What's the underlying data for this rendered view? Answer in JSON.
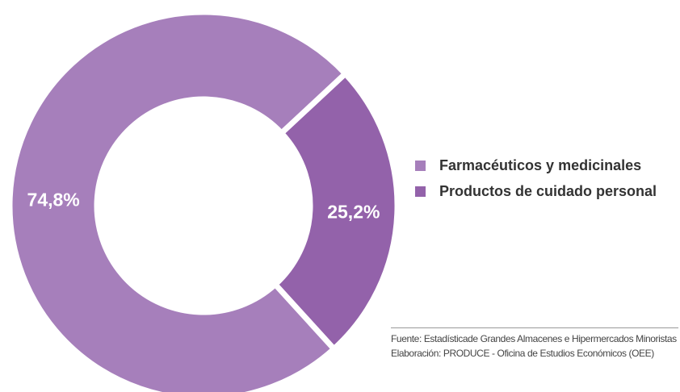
{
  "chart_data": {
    "type": "pie",
    "donut": true,
    "slices": [
      {
        "name": "Farmacéuticos y medicinales",
        "value": 74.8,
        "label": "74,8%",
        "color": "#a67fbb"
      },
      {
        "name": "Productos de cuidado personal",
        "value": 25.2,
        "label": "25,2%",
        "color": "#9362aa"
      }
    ],
    "legend_placement": "right"
  },
  "footer": {
    "source": "Fuente: Estadísticade Grandes Almacenes e Hipermercados Minoristas",
    "elaboration": "Elaboración: PRODUCE - Oficina de Estudios Económicos (OEE)"
  }
}
